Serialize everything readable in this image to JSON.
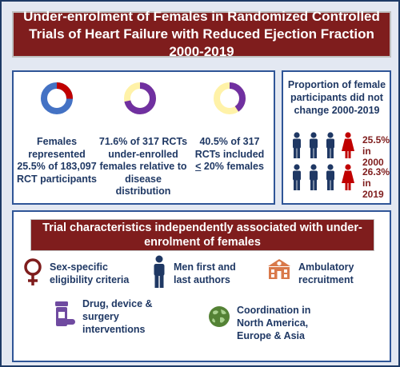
{
  "title": "Under-enrolment of Females in Randomized Controlled Trials of Heart Failure with Reduced Ejection Fraction 2000-2019",
  "stats": [
    {
      "text": "Females represented 25.5% of 183,097 RCT participants",
      "fraction": 0.255
    },
    {
      "text": "71.6% of 317 RCTs under-enrolled females relative to disease distribution",
      "fraction": 0.716
    },
    {
      "text_prefix": "40.5% of 317 RCTs included",
      "text_underlined": "<",
      "text_suffix": " 20% females",
      "fraction": 0.405
    }
  ],
  "proportion_panel": {
    "title": "Proportion of female participants did not change 2000-2019",
    "rows": [
      {
        "label": "25.5% in 2000"
      },
      {
        "label": "26.3% in 2019"
      }
    ]
  },
  "characteristics": {
    "title": "Trial characteristics independently associated with under-enrolment of females",
    "items": [
      {
        "label": "Sex-specific eligibility criteria",
        "icon": "female-symbol-icon"
      },
      {
        "label": "Men first and last authors",
        "icon": "man-icon"
      },
      {
        "label": "Ambulatory recruitment",
        "icon": "hospital-building-icon"
      },
      {
        "label": "Drug, device & surgery interventions",
        "icon": "pill-bottle-icon"
      },
      {
        "label": "Coordination in North America, Europe & Asia",
        "icon": "globe-icon"
      }
    ]
  },
  "colors": {
    "dark_red": "#7f1d1d",
    "navy": "#1f3864",
    "blue_ring": "#4472c4",
    "red_segment": "#c00000",
    "purple_ring": "#7030a0",
    "yellow_ring": "#fff2a8",
    "frame_bg": "#e3e8f2",
    "icon_orange": "#d9794a",
    "icon_green": "#548235",
    "icon_purple": "#6f4aa0"
  }
}
